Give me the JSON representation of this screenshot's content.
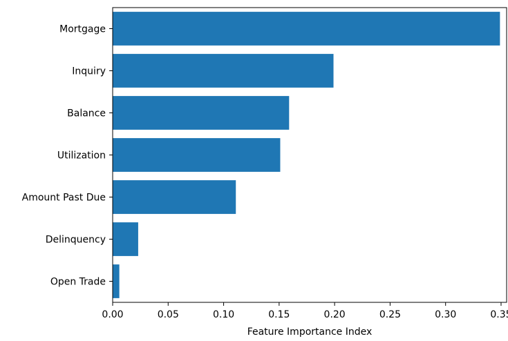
{
  "chart_data": {
    "type": "bar",
    "orientation": "horizontal",
    "categories": [
      "Mortgage",
      "Inquiry",
      "Balance",
      "Utilization",
      "Amount Past Due",
      "Delinquency",
      "Open Trade"
    ],
    "values": [
      0.349,
      0.199,
      0.159,
      0.151,
      0.111,
      0.023,
      0.006
    ],
    "xlabel": "Feature Importance Index",
    "ylabel": "",
    "xlim": [
      0.0,
      0.355
    ],
    "xticks": [
      "0.00",
      "0.05",
      "0.10",
      "0.15",
      "0.20",
      "0.25",
      "0.30",
      "0.35"
    ],
    "bar_color": "#1f77b4",
    "grid": false
  }
}
